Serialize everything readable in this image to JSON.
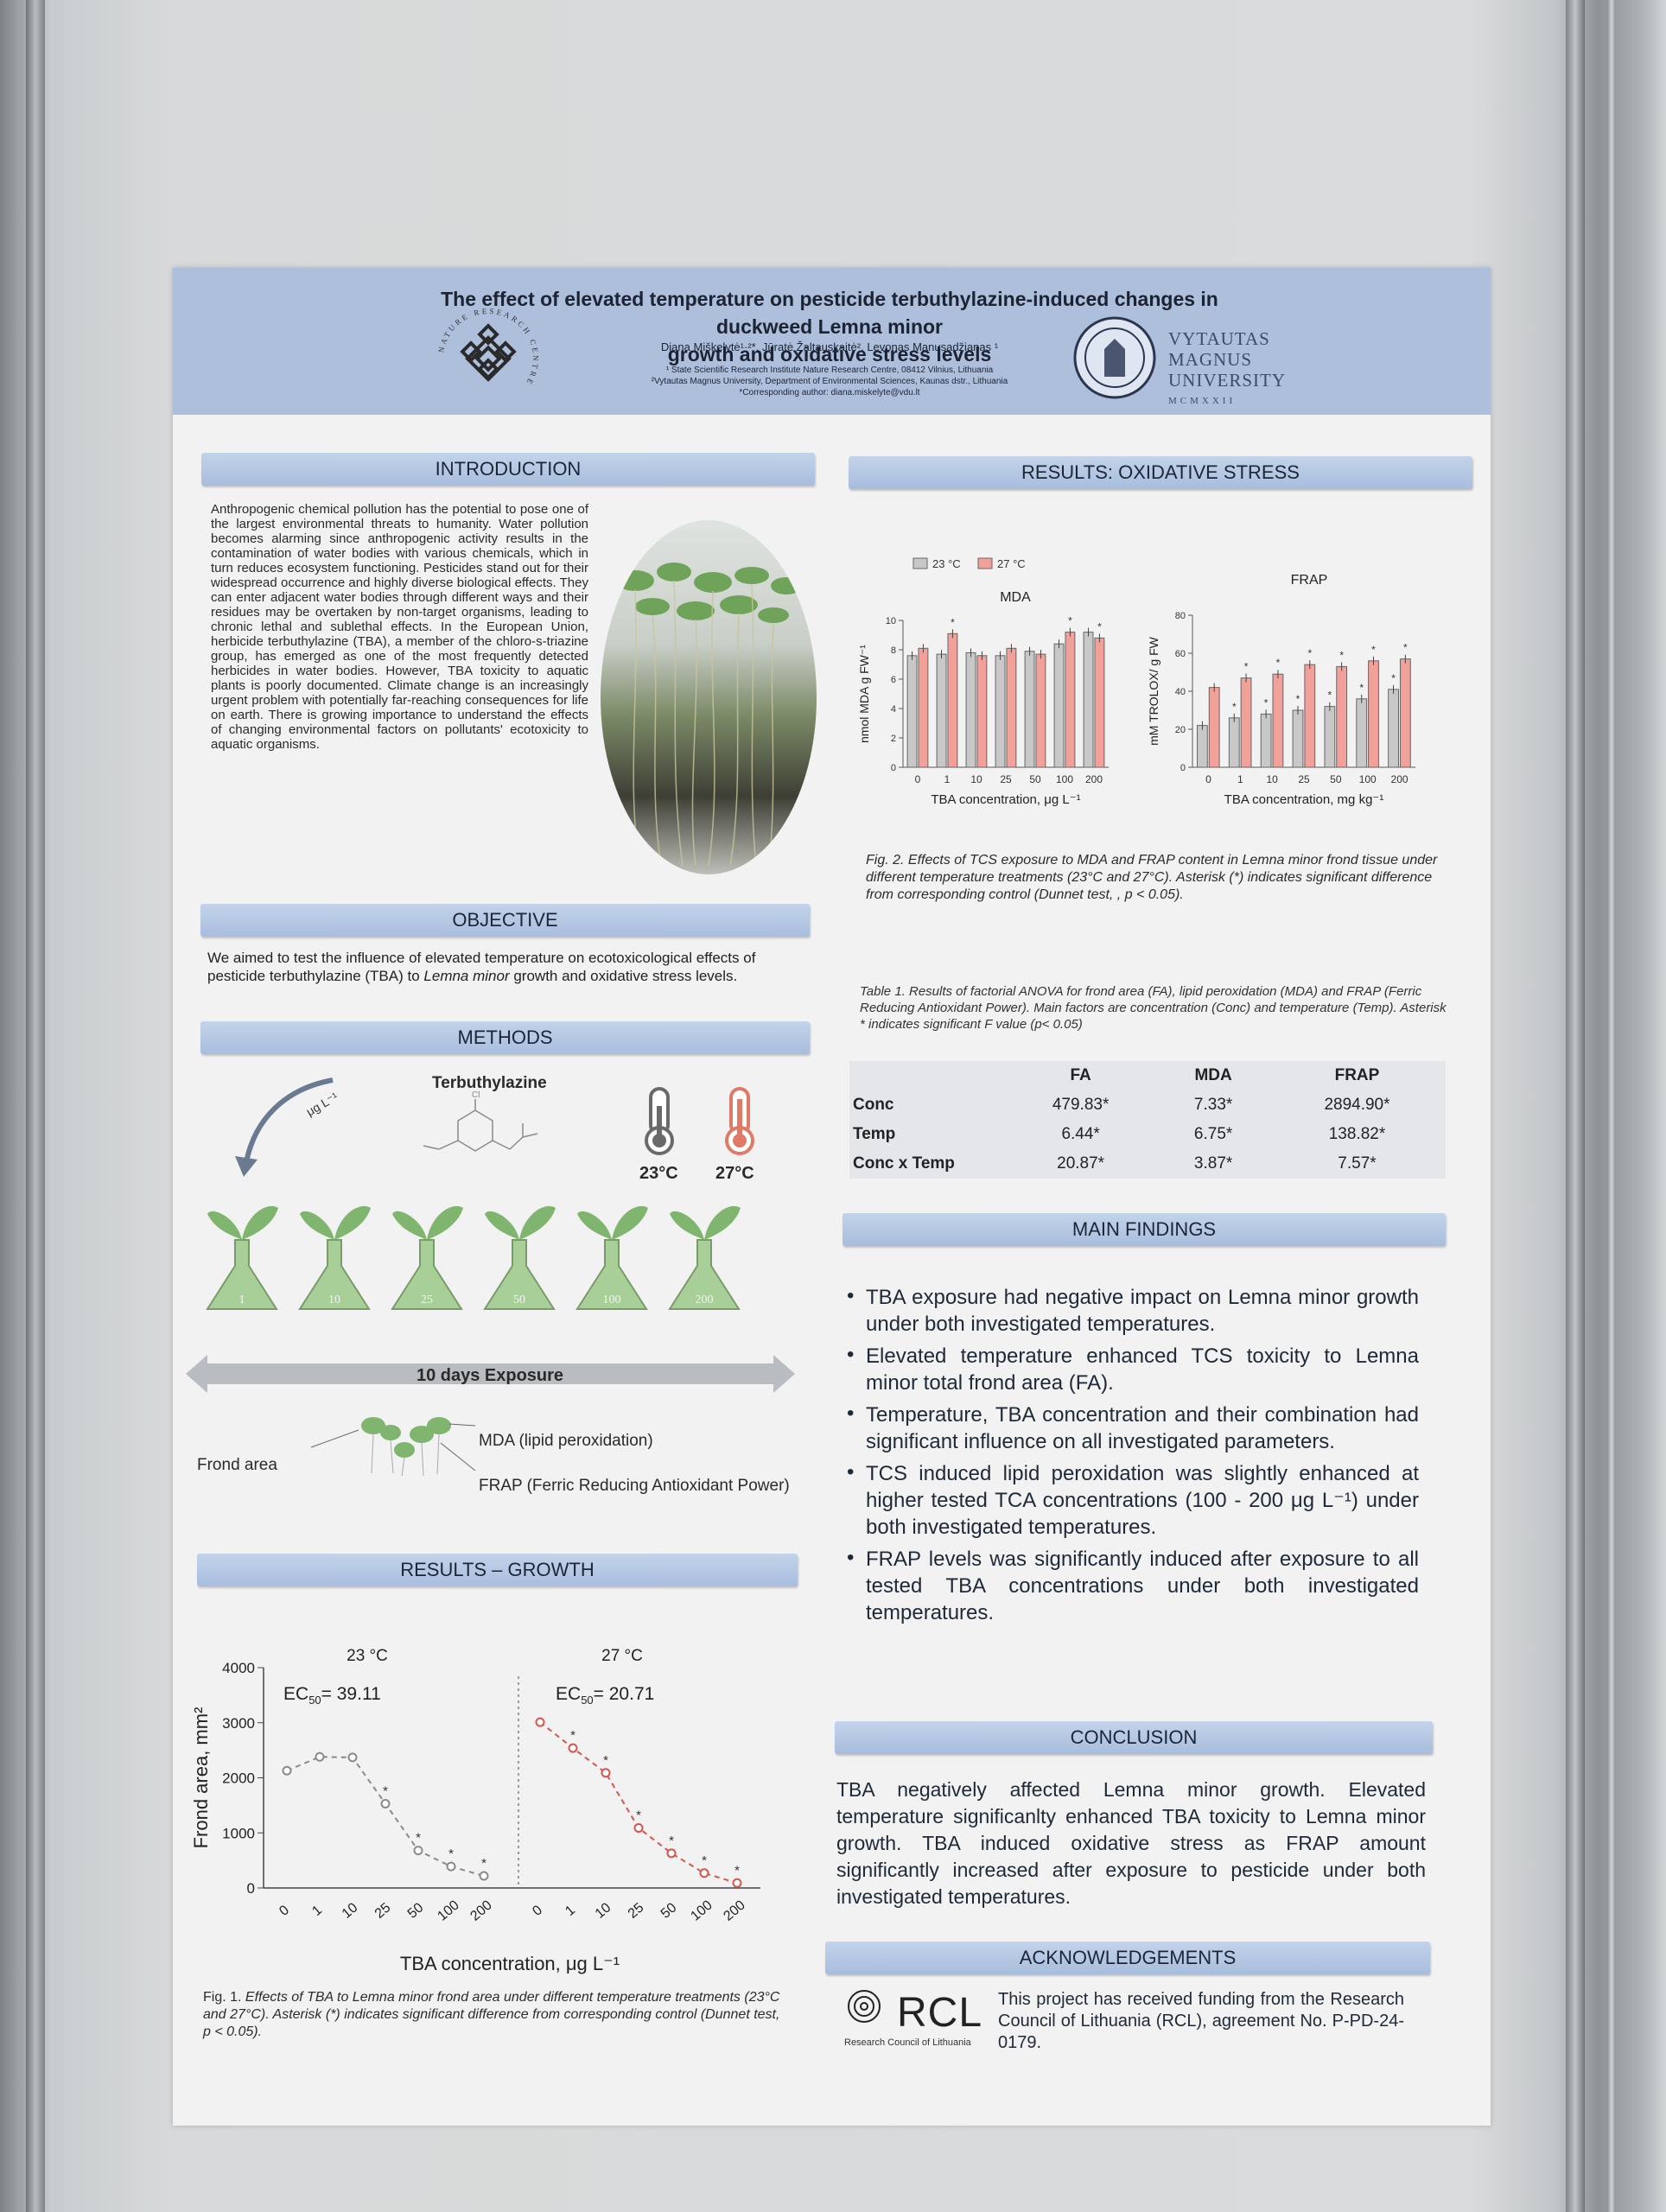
{
  "poster": {
    "title_line1": "The effect of elevated temperature on pesticide terbuthylazine-induced changes in duckweed Lemna minor",
    "title_line2": "growth and oxidative stress levels",
    "authors": "Diana Miškelytė¹·²*, Jūratė Žaltauskaitė², Levonas Manusadžianas ¹",
    "affiliation1": "¹ State Scientific Research Institute Nature Research Centre, 08412 Vilnius, Lithuania",
    "affiliation2": "²Vytautas Magnus University, Department of Environmental Sciences, Kaunas dstr., Lithuania",
    "affiliation3": "*Corresponding author: diana.miskelyte@vdu.lt",
    "nrc_ring_text": "NATURE RESEARCH CENTRE",
    "vmu_line1": "VYTAUTAS",
    "vmu_line2": "MAGNUS",
    "vmu_line3": "UNIVERSITY",
    "vmu_year": "MCMXXII"
  },
  "introduction": {
    "heading": "INTRODUCTION",
    "text": "Anthropogenic chemical pollution has the potential to pose one of the largest environmental threats to humanity. Water pollution becomes alarming since anthropogenic activity results in the contamination of water bodies with various chemicals, which in turn reduces ecosystem functioning. Pesticides stand out for their widespread occurrence and highly diverse biological effects. They can enter adjacent water bodies through different ways and their residues may be overtaken by non-target organisms, leading to chronic lethal and sublethal effects. In the European Union, herbicide terbuthylazine (TBA), a member of the chloro-s-triazine group, has emerged as one of the most frequently detected herbicides in water bodies. However, TBA toxicity to aquatic plants is poorly documented. Climate change is an increasingly urgent problem with potentially far-reaching consequences for life on earth. There is growing importance to understand the effects of changing environmental factors on pollutants' ecotoxicity to aquatic organisms."
  },
  "objective": {
    "heading": "OBJECTIVE",
    "text_pre": "We aimed to test the influence of elevated temperature on ecotoxicological effects of pesticide terbuthylazine (TBA) to ",
    "text_species": "Lemna minor",
    "text_post": " growth and oxidative stress levels."
  },
  "methods": {
    "heading": "METHODS",
    "chemical": "Terbuthylazine",
    "unit": "μg L⁻¹",
    "temp1": "23°C",
    "temp2": "27°C",
    "flasks": [
      "1",
      "10",
      "25",
      "50",
      "100",
      "200"
    ],
    "exposure": "10 days Exposure",
    "frond_area": "Frond area",
    "mda": "MDA (lipid peroxidation)",
    "frap": "FRAP (Ferric Reducing Antioxidant Power)"
  },
  "growth": {
    "heading": "RESULTS – GROWTH",
    "fig_caption_lead": "Fig. 1. ",
    "fig_caption": "Effects of TBA to Lemna minor frond area under different temperature treatments (23°C and 27°C). Asterisk (*) indicates significant difference from corresponding control (Dunnet test, p < 0.05)."
  },
  "oxidative": {
    "heading": "RESULTS: OXIDATIVE STRESS",
    "fig_caption": "Fig. 2. Effects of TCS exposure to MDA and FRAP content in Lemna minor frond tissue under different temperature treatments (23°C and 27°C). Asterisk (*) indicates significant difference from corresponding control (Dunnet test, , p < 0.05)."
  },
  "anova": {
    "caption": "Table 1. Results of factorial ANOVA for frond area (FA), lipid peroxidation (MDA) and FRAP (Ferric Reducing Antioxidant Power). Main factors are concentration (Conc) and temperature (Temp). Asterisk * indicates significant F value (p< 0.05)",
    "headers": [
      "",
      "FA",
      "MDA",
      "FRAP"
    ],
    "rows": [
      [
        "Conc",
        "479.83*",
        "7.33*",
        "2894.90*"
      ],
      [
        "Temp",
        "6.44*",
        "6.75*",
        "138.82*"
      ],
      [
        "Conc x Temp",
        "20.87*",
        "3.87*",
        "7.57*"
      ]
    ]
  },
  "findings": {
    "heading": "MAIN FINDINGS",
    "items": [
      "TBA exposure had negative impact on Lemna minor growth under both investigated temperatures.",
      "Elevated temperature enhanced TCS toxicity to Lemna minor total frond area (FA).",
      "Temperature, TBA concentration and their combination had significant influence on all investigated parameters.",
      "TCS induced lipid peroxidation was slightly enhanced at higher tested TCA concentrations (100 - 200 μg L⁻¹) under both investigated temperatures.",
      "FRAP levels was significantly induced after exposure to all tested TBA concentrations under both investigated temperatures."
    ]
  },
  "conclusion": {
    "heading": "CONCLUSION",
    "text": "TBA negatively affected Lemna minor growth. Elevated temperature significanlty enhanced TBA toxicity to Lemna minor growth. TBA induced oxidative stress as FRAP amount significantly increased after exposure to pesticide under both investigated temperatures."
  },
  "acknowledgements": {
    "heading": "ACKNOWLEDGEMENTS",
    "text": "This project has received funding from the Research Council of Lithuania (RCL), agreement No. P-PD-24-0179.",
    "logo_word": "RCL",
    "logo_sub": "Research Council of Lithuania"
  },
  "colors": {
    "header_bg": "#aebfdc",
    "bar_23": "#c8c8c8",
    "bar_27": "#f2a09a",
    "line_23": "#8a8a8a",
    "line_27": "#d9534f"
  },
  "chart_data": [
    {
      "type": "bar",
      "title": "MDA",
      "ylabel": "nmol MDA g FW⁻¹",
      "xlabel": "TBA concentration, μg L⁻¹",
      "categories": [
        "0",
        "1",
        "10",
        "25",
        "50",
        "100",
        "200"
      ],
      "ylim": [
        0,
        10
      ],
      "yticks": [
        0,
        2,
        4,
        6,
        8,
        10
      ],
      "legend": "top-left",
      "series": [
        {
          "name": "23 °C",
          "values": [
            7.6,
            7.7,
            7.8,
            7.6,
            7.9,
            8.4,
            9.2
          ],
          "stars": [
            false,
            false,
            false,
            false,
            false,
            false,
            false
          ]
        },
        {
          "name": "27 °C",
          "values": [
            8.1,
            9.1,
            7.6,
            8.1,
            7.7,
            9.2,
            8.8
          ],
          "stars": [
            false,
            true,
            false,
            false,
            false,
            true,
            true
          ]
        }
      ]
    },
    {
      "type": "bar",
      "title": "FRAP",
      "ylabel": "mM TROLOX/ g FW",
      "xlabel": "TBA concentration, mg kg⁻¹",
      "categories": [
        "0",
        "1",
        "10",
        "25",
        "50",
        "100",
        "200"
      ],
      "ylim": [
        0,
        80
      ],
      "yticks": [
        0,
        20,
        40,
        60,
        80
      ],
      "series": [
        {
          "name": "23 °C",
          "values": [
            22,
            26,
            28,
            30,
            32,
            36,
            41
          ],
          "stars": [
            false,
            true,
            true,
            true,
            true,
            true,
            true
          ]
        },
        {
          "name": "27 °C",
          "values": [
            42,
            47,
            49,
            54,
            53,
            56,
            57
          ],
          "stars": [
            false,
            true,
            true,
            true,
            true,
            true,
            true
          ]
        }
      ]
    },
    {
      "type": "line",
      "ylabel": "Frond area, mm²",
      "xlabel": "TBA concentration, μg L⁻¹",
      "ylim": [
        0,
        4000
      ],
      "yticks": [
        0,
        1000,
        2000,
        3000,
        4000
      ],
      "panels": [
        {
          "name": "23 °C",
          "ec50_label": "EC",
          "ec50_sub": "50",
          "ec50_value": "= 39.11",
          "x": [
            "0",
            "1",
            "10",
            "25",
            "50",
            "100",
            "200"
          ],
          "y": [
            2130,
            2380,
            2370,
            1530,
            680,
            390,
            220
          ],
          "stars": [
            false,
            false,
            false,
            true,
            true,
            true,
            true
          ]
        },
        {
          "name": "27 °C",
          "ec50_label": "EC",
          "ec50_sub": "50",
          "ec50_value": "= 20.71",
          "x": [
            "0",
            "1",
            "10",
            "25",
            "50",
            "100",
            "200"
          ],
          "y": [
            3010,
            2540,
            2090,
            1090,
            630,
            270,
            90
          ],
          "stars": [
            false,
            true,
            true,
            true,
            true,
            true,
            true
          ]
        }
      ]
    }
  ]
}
